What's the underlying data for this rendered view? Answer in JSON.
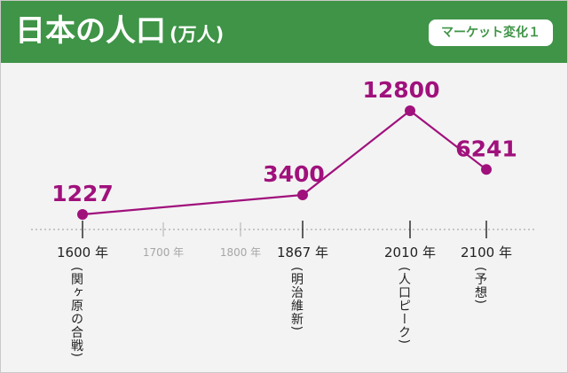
{
  "header": {
    "title": "日本の人口",
    "unit": "(万人)",
    "badge": "マーケット変化１"
  },
  "colors": {
    "header_bg": "#3f9447",
    "line": "#a0117c",
    "axis": "#555555",
    "grey_label": "#a6a6a6"
  },
  "chart_data": {
    "type": "line",
    "title": "日本の人口",
    "ylabel": "(万人)",
    "points": [
      {
        "x": 1600,
        "label": "1600 年",
        "note": "(関ヶ原の合戦)",
        "value": 1227,
        "value_label": "1227"
      },
      {
        "x": 1867,
        "label": "1867 年",
        "note": "(明治維新)",
        "value": 3400,
        "value_label": "3400"
      },
      {
        "x": 2010,
        "label": "2010 年",
        "note": "(人口ピーク)",
        "value": 12800,
        "value_label": "12800"
      },
      {
        "x": 2100,
        "label": "2100 年",
        "note": "(予想)",
        "value": 6241,
        "value_label": "6241"
      }
    ],
    "minor_ticks": [
      {
        "x": 1700,
        "label": "1700 年"
      },
      {
        "x": 1800,
        "label": "1800 年"
      }
    ]
  }
}
